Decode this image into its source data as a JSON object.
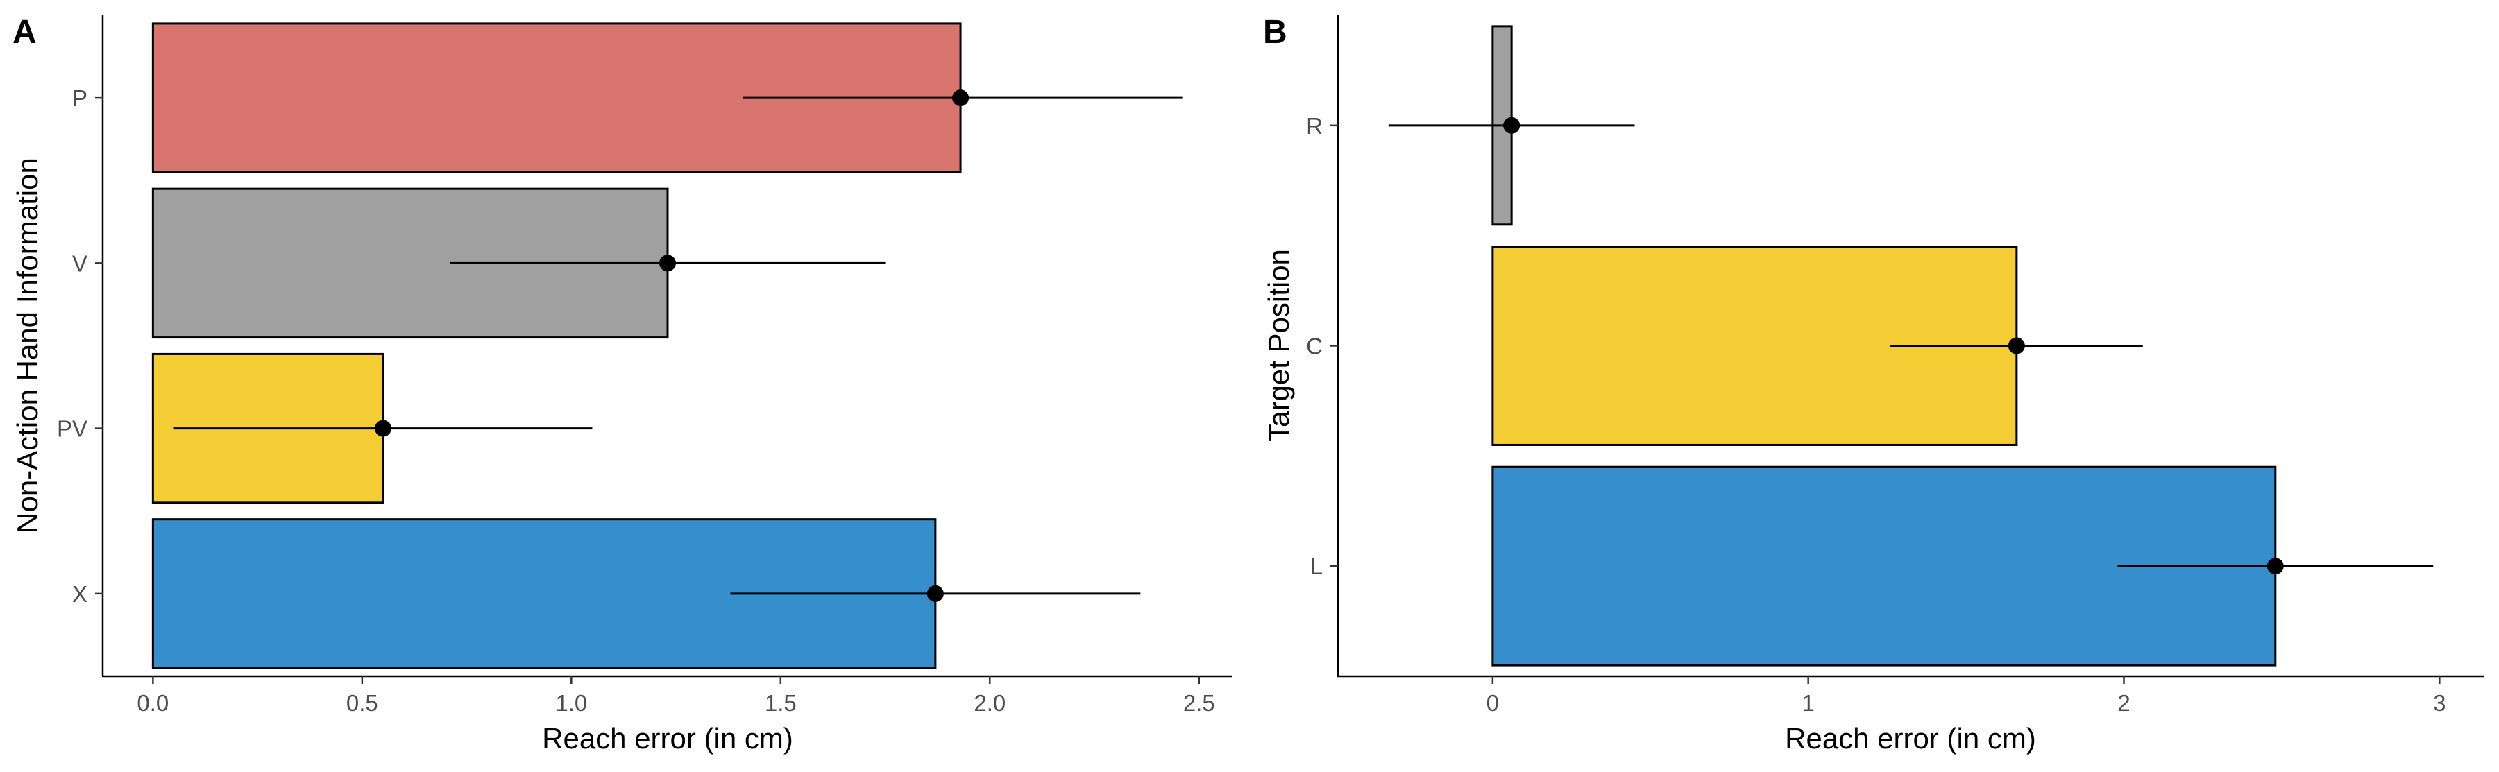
{
  "chart_data": [
    {
      "panel_label": "A",
      "type": "bar",
      "orientation": "horizontal",
      "xlabel": "Reach error (in cm)",
      "ylabel": "Non-Action Hand Information",
      "xlim": [
        -0.12,
        2.58
      ],
      "x_ticks": [
        0,
        0.5,
        1,
        1.5,
        2,
        2.5
      ],
      "x_tick_labels": [
        "0.0",
        "0.5",
        "1.0",
        "1.5",
        "2.0",
        "2.5"
      ],
      "grid": false,
      "categories": [
        "P",
        "V",
        "PV",
        "X"
      ],
      "values": [
        1.93,
        1.23,
        0.55,
        1.87
      ],
      "error_low": [
        1.41,
        0.71,
        0.05,
        1.38
      ],
      "error_high": [
        2.46,
        1.75,
        1.05,
        2.36
      ],
      "colors": [
        "#D9756F",
        "#A0A0A0",
        "#F3CD33",
        "#368ECD"
      ]
    },
    {
      "panel_label": "B",
      "type": "bar",
      "orientation": "horizontal",
      "xlabel": "Reach error (in cm)",
      "ylabel": "Target Position",
      "xlim": [
        -0.49,
        3.14
      ],
      "x_ticks": [
        0,
        1,
        2,
        3
      ],
      "x_tick_labels": [
        "0",
        "1",
        "2",
        "3"
      ],
      "grid": false,
      "categories": [
        "R",
        "C",
        "L"
      ],
      "values": [
        0.06,
        1.66,
        2.48
      ],
      "error_low": [
        -0.33,
        1.26,
        1.98
      ],
      "error_high": [
        0.45,
        2.06,
        2.98
      ],
      "colors": [
        "#A0A0A0",
        "#F3CD33",
        "#368ECD"
      ]
    }
  ]
}
